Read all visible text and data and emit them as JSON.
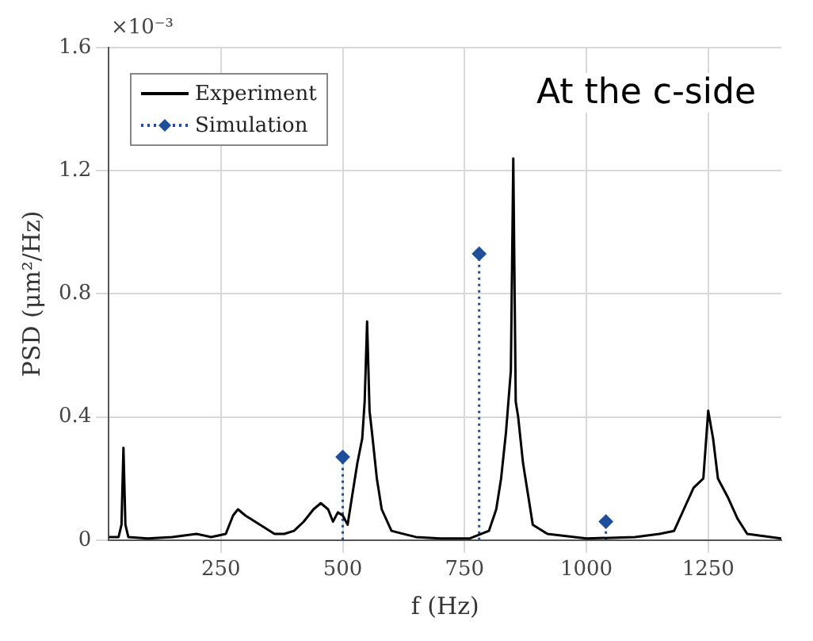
{
  "chart_data": {
    "type": "line",
    "xlabel": "f (Hz)",
    "ylabel": "PSD (μm²/Hz)",
    "annotations": [
      "×10⁻³",
      "At the c-side"
    ],
    "xlim": [
      20,
      1400
    ],
    "xticks": [
      250,
      500,
      750,
      1000,
      1250
    ],
    "ylim": [
      0,
      1.6
    ],
    "yticks": [
      0,
      0.4,
      0.8,
      1.2,
      1.6
    ],
    "grid": true,
    "legend": "top left",
    "series": [
      {
        "name": "Experiment",
        "color": "#000000",
        "marker": "none",
        "line_style": "solid",
        "x": [
          20,
          40,
          46,
          50,
          54,
          60,
          100,
          150,
          200,
          230,
          260,
          275,
          285,
          300,
          320,
          340,
          360,
          380,
          400,
          420,
          440,
          455,
          470,
          480,
          490,
          500,
          510,
          520,
          530,
          540,
          545,
          550,
          555,
          560,
          570,
          580,
          600,
          650,
          700,
          760,
          800,
          815,
          825,
          835,
          845,
          850,
          855,
          860,
          870,
          880,
          890,
          920,
          1000,
          1100,
          1150,
          1180,
          1200,
          1220,
          1240,
          1250,
          1260,
          1270,
          1290,
          1310,
          1330,
          1400
        ],
        "values": [
          0.01,
          0.01,
          0.05,
          0.3,
          0.05,
          0.01,
          0.005,
          0.01,
          0.02,
          0.01,
          0.02,
          0.08,
          0.1,
          0.08,
          0.06,
          0.04,
          0.02,
          0.02,
          0.03,
          0.06,
          0.1,
          0.12,
          0.1,
          0.06,
          0.09,
          0.08,
          0.05,
          0.15,
          0.25,
          0.33,
          0.45,
          0.71,
          0.42,
          0.35,
          0.2,
          0.1,
          0.03,
          0.01,
          0.005,
          0.005,
          0.03,
          0.1,
          0.2,
          0.35,
          0.55,
          1.24,
          0.45,
          0.4,
          0.25,
          0.15,
          0.05,
          0.02,
          0.005,
          0.01,
          0.02,
          0.03,
          0.1,
          0.17,
          0.2,
          0.42,
          0.33,
          0.2,
          0.14,
          0.07,
          0.02,
          0.005
        ]
      },
      {
        "name": "Simulation",
        "type": "lollipop",
        "color": "#1f4e9a",
        "marker": "diamond",
        "line_style": "dotted",
        "x": [
          500,
          780,
          1040
        ],
        "values": [
          0.27,
          0.93,
          0.06
        ]
      }
    ]
  }
}
